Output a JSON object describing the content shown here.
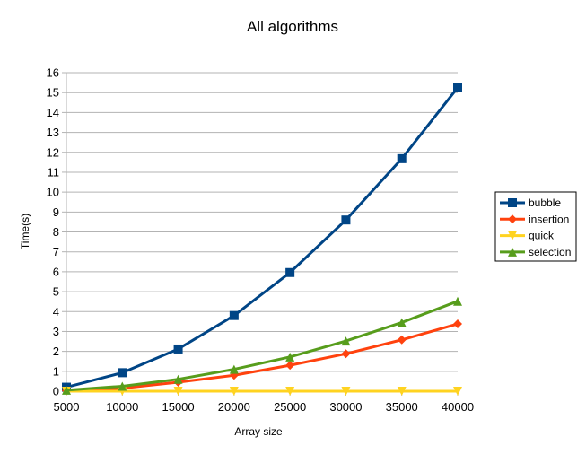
{
  "chart_data": {
    "type": "line",
    "title": "All algorithms",
    "xlabel": "Array size",
    "ylabel": "Time(s)",
    "x": [
      5000,
      10000,
      15000,
      20000,
      25000,
      30000,
      35000,
      40000
    ],
    "ylim": [
      0,
      16
    ],
    "yticks": [
      0,
      1,
      2,
      3,
      4,
      5,
      6,
      7,
      8,
      9,
      10,
      11,
      12,
      13,
      14,
      15,
      16
    ],
    "grid": "horizontal",
    "legend_position": "right",
    "series": [
      {
        "name": "bubble",
        "color": "#004586",
        "marker": "square",
        "values": [
          0.2,
          0.93,
          2.12,
          3.8,
          5.96,
          8.6,
          11.68,
          15.25
        ]
      },
      {
        "name": "insertion",
        "color": "#ff420e",
        "marker": "diamond",
        "values": [
          0.03,
          0.15,
          0.45,
          0.8,
          1.3,
          1.88,
          2.58,
          3.38
        ]
      },
      {
        "name": "quick",
        "color": "#ffd320",
        "marker": "triangle-down",
        "values": [
          0.0,
          0.0,
          0.0,
          0.0,
          0.0,
          0.0,
          0.0,
          0.0
        ]
      },
      {
        "name": "selection",
        "color": "#579d1c",
        "marker": "triangle-up",
        "values": [
          0.05,
          0.25,
          0.6,
          1.1,
          1.72,
          2.52,
          3.45,
          4.52
        ]
      }
    ]
  }
}
